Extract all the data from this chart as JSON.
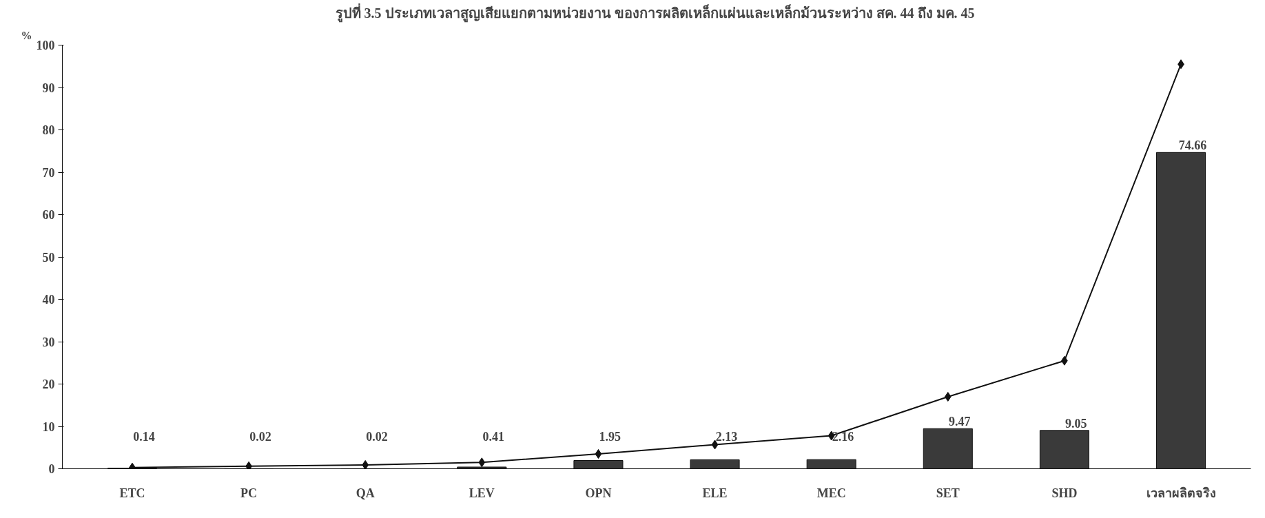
{
  "chart_data": {
    "type": "bar",
    "title": "รูปที่ 3.5  ประเภทเวลาสูญเสียแยกตามหน่วยงาน ของการผลิตเหล็กแผ่นและเหล็กม้วนระหว่าง สค. 44 ถึง มค. 45",
    "ylabel": "%",
    "categories": [
      "ETC",
      "PC",
      "QA",
      "LEV",
      "OPN",
      "ELE",
      "MEC",
      "SET",
      "SHD",
      "เวลาผลิตจริง"
    ],
    "ylim": [
      0,
      100
    ],
    "yticks": [
      0,
      10,
      20,
      30,
      40,
      50,
      60,
      70,
      80,
      90,
      100
    ],
    "grid": false,
    "series": [
      {
        "color": "#3a3a3a",
        "values": [
          0.14,
          0.02,
          0.02,
          0.41,
          1.95,
          2.13,
          2.16,
          9.47,
          9.05,
          74.66
        ],
        "value_labels": [
          "0.14",
          "0.02",
          "0.02",
          "0.41",
          "1.95",
          "2.13",
          "2.16",
          "9.47",
          "9.05",
          "74.66"
        ]
      },
      {
        "type": "line",
        "color": "#111111",
        "marker": "diamond",
        "line_style": "solid",
        "values": [
          0.3,
          0.6,
          0.9,
          1.5,
          3.5,
          5.7,
          7.8,
          17,
          25.5,
          95.5
        ]
      }
    ]
  }
}
